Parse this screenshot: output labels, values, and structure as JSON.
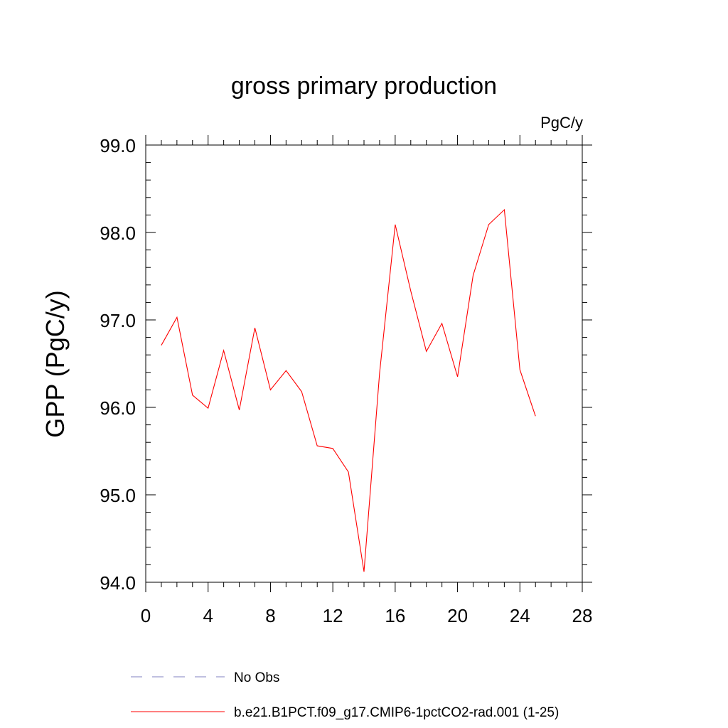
{
  "chart_data": {
    "type": "line",
    "title": "gross primary production",
    "units_label": "PgC/y",
    "ylabel": "GPP  (PgC/y)",
    "xlabel": "",
    "xlim": [
      0,
      28
    ],
    "ylim": [
      94.0,
      99.0
    ],
    "x_ticks": [
      0,
      4,
      8,
      12,
      16,
      20,
      24,
      28
    ],
    "y_ticks": [
      94.0,
      95.0,
      96.0,
      97.0,
      98.0,
      99.0
    ],
    "y_tick_labels": [
      "94.0",
      "95.0",
      "96.0",
      "97.0",
      "98.0",
      "99.0"
    ],
    "grid": false,
    "legend": {
      "position": "bottom",
      "entries": [
        {
          "label": "No Obs",
          "color": "#8080c0",
          "dash": "dashed"
        },
        {
          "label": "b.e21.B1PCT.f09_g17.CMIP6-1pctCO2-rad.001 (1-25)",
          "color": "#ff0000",
          "dash": "solid"
        }
      ]
    },
    "series": [
      {
        "name": "b.e21.B1PCT.f09_g17.CMIP6-1pctCO2-rad.001 (1-25)",
        "color": "#ff0000",
        "x": [
          1,
          2,
          3,
          4,
          5,
          6,
          7,
          8,
          9,
          10,
          11,
          12,
          13,
          14,
          15,
          16,
          17,
          18,
          19,
          20,
          21,
          22,
          23,
          24,
          25
        ],
        "values": [
          96.71,
          97.03,
          96.14,
          95.99,
          96.65,
          95.97,
          96.91,
          96.2,
          96.42,
          96.18,
          95.56,
          95.53,
          95.26,
          94.12,
          96.39,
          98.09,
          97.33,
          96.64,
          96.96,
          96.35,
          97.51,
          98.09,
          98.26,
          96.43,
          95.9
        ]
      }
    ]
  }
}
